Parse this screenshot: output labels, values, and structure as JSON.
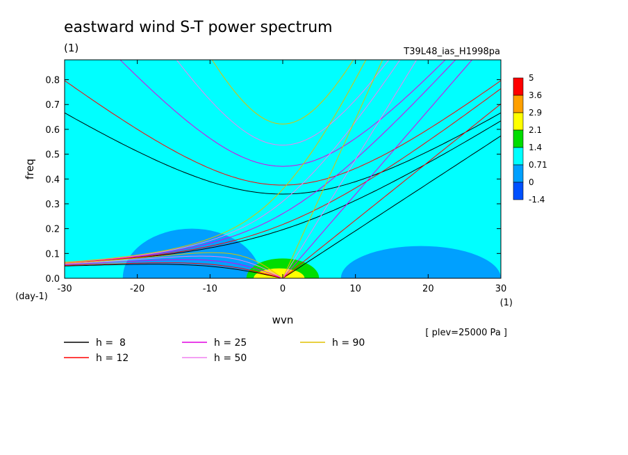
{
  "chart_data": {
    "type": "heatmap",
    "title": "eastward wind S-T power spectrum",
    "subtitle_left": "(1)",
    "subtitle_right": "T39L48_ias_H1998pa",
    "xlabel": "wvn",
    "ylabel": "freq",
    "x_unit_label": "(1)",
    "y_unit_label": "(day-1)",
    "xlim": [
      -30,
      30
    ],
    "ylim": [
      0,
      0.88
    ],
    "xticks": [
      -30,
      -20,
      -10,
      0,
      10,
      20,
      30
    ],
    "yticks": [
      0.0,
      0.1,
      0.2,
      0.3,
      0.4,
      0.5,
      0.6,
      0.7,
      0.8
    ],
    "annotation": "[ plev=25000 Pa ]",
    "colorbar": {
      "levels": [
        "5",
        "3.6",
        "2.9",
        "2.1",
        "1.4",
        "0.71",
        "0",
        "-1.4"
      ],
      "colors": [
        "#ff0000",
        "#ffa000",
        "#ffff00",
        "#00dd00",
        "#00ffff",
        "#00a0ff",
        "#0050ff"
      ]
    },
    "background_level_color": "#00ffff",
    "regions": [
      {
        "level": "0 to 0.71",
        "color": "#00a0ff",
        "x_range": [
          8,
          30
        ],
        "y_range": [
          0,
          0.13
        ]
      },
      {
        "level": "0 to 0.71",
        "color": "#00a0ff",
        "x_range": [
          -22,
          -3
        ],
        "y_range": [
          0,
          0.2
        ]
      },
      {
        "level": "1.4 to 2.1",
        "color": "#00dd00",
        "x_range": [
          -5,
          5
        ],
        "y_range": [
          0,
          0.08
        ]
      },
      {
        "level": "2.1 to 2.9",
        "color": "#ffff00",
        "x_range": [
          -4,
          3
        ],
        "y_range": [
          0,
          0.04
        ]
      }
    ],
    "dispersion_curves": [
      {
        "label": "h =  8",
        "h": 8,
        "color": "#000000"
      },
      {
        "label": "h = 12",
        "h": 12,
        "color": "#ff0000"
      },
      {
        "label": "h = 25",
        "h": 25,
        "color": "#e000e0"
      },
      {
        "label": "h = 50",
        "h": 50,
        "color": "#f080f0"
      },
      {
        "label": "h = 90",
        "h": 90,
        "color": "#e0c000"
      }
    ]
  }
}
